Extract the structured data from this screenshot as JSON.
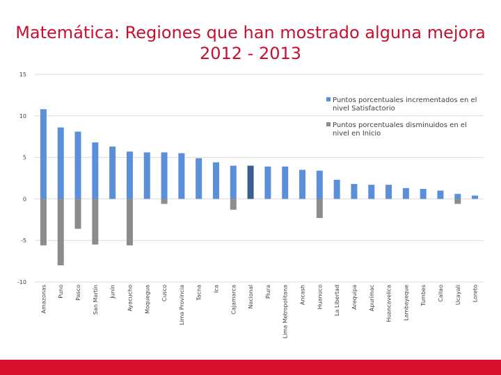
{
  "title_line1": "Matemática: Regiones que han mostrado alguna mejora",
  "title_line2": "2012 - 2013",
  "colors": {
    "increase": "#5b8fd9",
    "decrease": "#8c8c8c",
    "highlight": "#3a5f8f",
    "footer": "#d8102e",
    "title": "#c8102e"
  },
  "chart_data": {
    "type": "bar",
    "title": "Matemática: Regiones que han mostrado alguna mejora 2012 - 2013",
    "categories": [
      "Amazonas",
      "Puno",
      "Pasco",
      "San Martín",
      "Junín",
      "Ayacucho",
      "Moquegua",
      "Cusco",
      "Lima Provincia",
      "Tacna",
      "Ica",
      "Cajamarca",
      "Nacional",
      "Piura",
      "Lima Metropolitana",
      "Ancash",
      "Huanuco",
      "La Libertad",
      "Arequipa",
      "Apurímac",
      "Huancavelica",
      "Lambayeque",
      "Tumbes",
      "Callao",
      "Ucayali",
      "Loreto"
    ],
    "series": [
      {
        "name": "Puntos porcentuales incrementados en el nivel Satisfactorio",
        "values": [
          10.8,
          8.6,
          8.1,
          6.8,
          6.3,
          5.7,
          5.6,
          5.6,
          5.5,
          4.9,
          4.4,
          4.0,
          4.0,
          3.9,
          3.9,
          3.5,
          3.4,
          2.3,
          1.8,
          1.7,
          1.7,
          1.3,
          1.2,
          1.0,
          0.6,
          0.4
        ]
      },
      {
        "name": "Puntos porcentuales disminuidos en el nivel en Inicio",
        "values": [
          -5.6,
          -8.0,
          -3.6,
          -5.5,
          0,
          -5.6,
          0,
          -0.6,
          0,
          0,
          0,
          -1.3,
          0,
          0,
          0,
          0,
          -2.3,
          0,
          0,
          0,
          0,
          0,
          0,
          0,
          -0.6,
          0
        ]
      }
    ],
    "highlight_category": "Nacional",
    "ylim": [
      -10,
      15
    ],
    "yticks": [
      -10,
      -5,
      0,
      5,
      10,
      15
    ],
    "ytick_labels": [
      "-10",
      "-5",
      "0",
      "5",
      "10",
      "15"
    ],
    "grid": true,
    "legend_position": "top-right"
  }
}
